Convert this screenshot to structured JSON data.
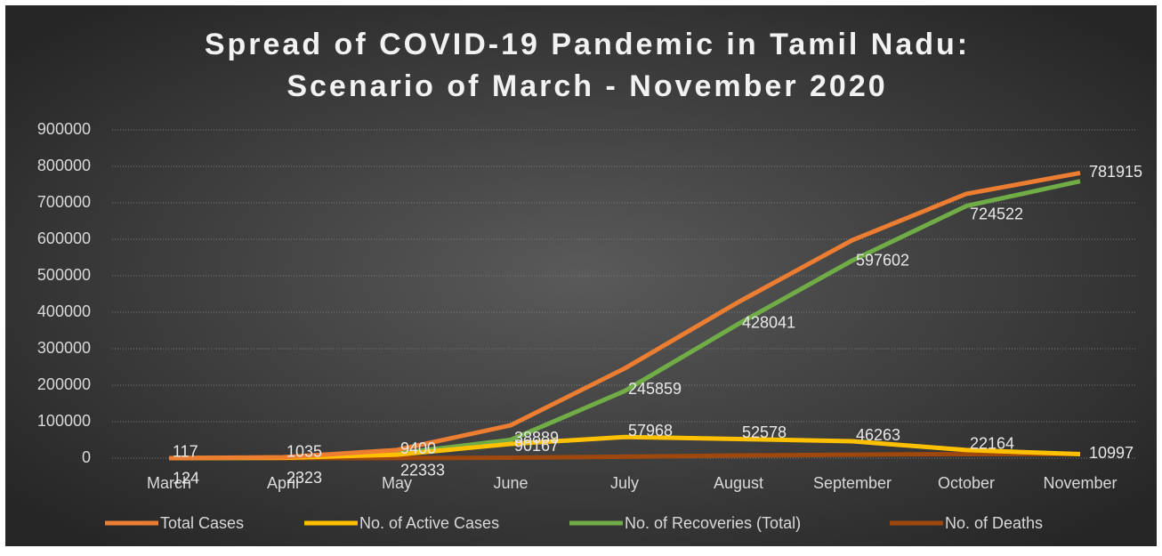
{
  "chart_data": {
    "type": "line",
    "title": "Spread of COVID-19 Pandemic in Tamil Nadu:",
    "subtitle": "Scenario of March - November 2020",
    "categories": [
      "March",
      "April",
      "May",
      "June",
      "July",
      "August",
      "September",
      "October",
      "November"
    ],
    "series": [
      {
        "name": "Total Cases",
        "color": "#ed7d31",
        "values": [
          124,
          2323,
          22333,
          90167,
          245859,
          428041,
          597602,
          724522,
          781915
        ],
        "labels": true
      },
      {
        "name": "No. of Active Cases",
        "color": "#ffc000",
        "values": [
          117,
          1035,
          9400,
          38889,
          57968,
          52578,
          46263,
          22164,
          10997
        ],
        "labels": true
      },
      {
        "name": "No. of Recoveries (Total)",
        "color": "#70ad47",
        "values": [
          6,
          1258,
          12757,
          50074,
          183956,
          368141,
          541819,
          691236,
          759206
        ],
        "labels": false
      },
      {
        "name": "No. of Deaths",
        "color": "#9e480e",
        "values": [
          1,
          27,
          173,
          1201,
          3935,
          7322,
          9520,
          11122,
          11681
        ],
        "labels": false
      }
    ],
    "ylim": [
      0,
      900000
    ],
    "yticks": [
      0,
      100000,
      200000,
      300000,
      400000,
      500000,
      600000,
      700000,
      800000,
      900000
    ],
    "grid": true,
    "legend": "bottom"
  }
}
